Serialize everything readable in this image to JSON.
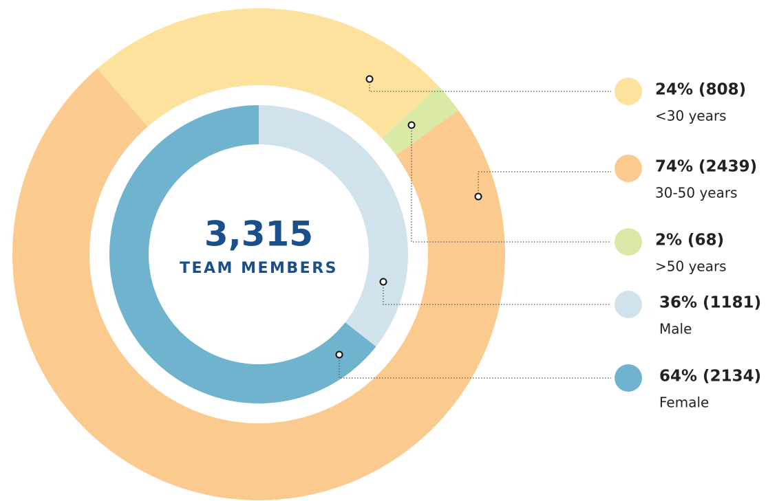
{
  "chart_data": {
    "type": "donut",
    "center_value": "3,315",
    "center_label": "TEAM MEMBERS",
    "rings": [
      {
        "categories": [
          "<30 years",
          "30-50 years",
          ">50 years"
        ],
        "values": [
          808,
          2439,
          68
        ],
        "value_labels": [
          "24% (808)",
          "74% (2439)",
          "2% (68)"
        ],
        "colors": [
          "#fde29e",
          "#fbca8f",
          "#d9eaa7"
        ]
      },
      {
        "categories": [
          "Male",
          "Female"
        ],
        "values": [
          1181,
          2134
        ],
        "value_labels": [
          "36% (1181)",
          "64% (2134)"
        ],
        "colors": [
          "#d0e2ec",
          "#6fb3cf"
        ]
      }
    ]
  }
}
